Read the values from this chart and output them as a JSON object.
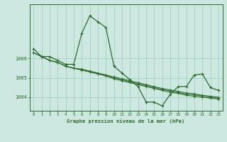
{
  "background_color": "#cce8e0",
  "grid_color": "#a8d4c8",
  "line_color": "#2d6b2d",
  "xlabel": "Graphe pression niveau de la mer (hPa)",
  "xlim": [
    -0.5,
    23.5
  ],
  "ylim": [
    1003.3,
    1008.8
  ],
  "yticks": [
    1004,
    1005,
    1006
  ],
  "ytick_labels": [
    "1004",
    "1005",
    "1006"
  ],
  "extra_ytick": 1008,
  "series_bg": [
    [
      1006.3,
      1006.1,
      1005.9,
      1005.8,
      1005.6,
      1005.5,
      1005.4,
      1005.3,
      1005.2,
      1005.1,
      1004.95,
      1004.85,
      1004.75,
      1004.65,
      1004.55,
      1004.45,
      1004.35,
      1004.25,
      1004.2,
      1004.1,
      1004.05,
      1004.0,
      1003.95,
      1003.9
    ],
    [
      1006.3,
      1006.1,
      1005.9,
      1005.8,
      1005.6,
      1005.5,
      1005.45,
      1005.35,
      1005.25,
      1005.15,
      1005.05,
      1004.95,
      1004.85,
      1004.75,
      1004.65,
      1004.55,
      1004.45,
      1004.38,
      1004.3,
      1004.22,
      1004.18,
      1004.1,
      1004.05,
      1004.0
    ],
    [
      1006.3,
      1006.1,
      1005.9,
      1005.8,
      1005.6,
      1005.5,
      1005.42,
      1005.32,
      1005.22,
      1005.12,
      1005.0,
      1004.9,
      1004.8,
      1004.7,
      1004.6,
      1004.5,
      1004.4,
      1004.32,
      1004.24,
      1004.16,
      1004.12,
      1004.06,
      1004.0,
      1003.95
    ]
  ],
  "main_series": [
    1006.5,
    1006.1,
    1006.1,
    1005.9,
    1005.7,
    1005.7,
    1007.3,
    1008.2,
    1007.9,
    1007.6,
    1005.6,
    1005.25,
    1004.9,
    1004.55,
    1003.75,
    1003.75,
    1003.55,
    1004.15,
    1004.55,
    1004.55,
    1005.15,
    1005.2,
    1004.5,
    1004.35
  ]
}
